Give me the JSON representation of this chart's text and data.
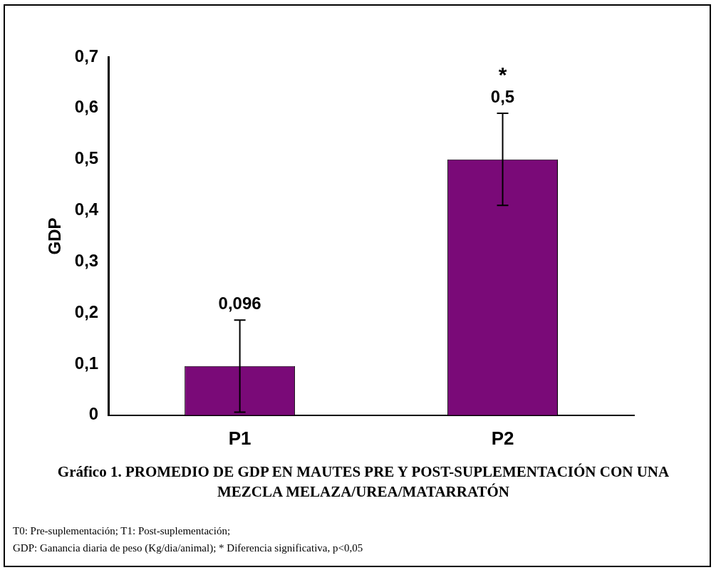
{
  "chart_data": {
    "type": "bar",
    "title": "Gráfico 1. PROMEDIO DE GDP EN MAUTES PRE Y POST-SUPLEMENTACIÓN CON UNA MEZCLA MELAZA/UREA/MATARRATÓN",
    "ylabel": "GDP",
    "categories": [
      "P1",
      "P2"
    ],
    "values": [
      0.096,
      0.5
    ],
    "errors": [
      0.09,
      0.09
    ],
    "value_labels": [
      "0,096",
      "0,5"
    ],
    "color": "#7a0a78",
    "ylim": [
      0,
      0.7
    ],
    "yticks": [
      0,
      {
        "value": 0.1,
        "label": "0,1"
      },
      {
        "value": 0.2,
        "label": "0,2"
      },
      {
        "value": 0.3,
        "label": "0,3"
      },
      {
        "value": 0.4,
        "label": "0,4"
      },
      {
        "value": 0.5,
        "label": "0,5"
      },
      {
        "value": 0.6,
        "label": "0,6"
      },
      {
        "value": 0.7,
        "label": "0,7"
      }
    ],
    "grid": false,
    "legend": false,
    "annotations": [
      "*",
      "T0: Pre-suplementación; T1: Post-suplementación;",
      "GDP: Ganancia diaria de peso (Kg/dia/animal); * Diferencia significativa, p<0,05"
    ]
  }
}
